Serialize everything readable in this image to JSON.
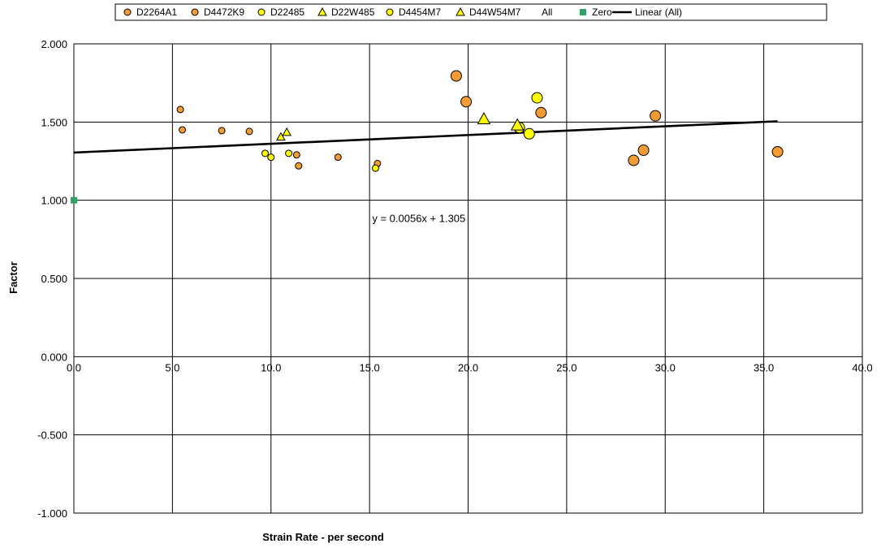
{
  "chart_data": {
    "type": "scatter",
    "title": "",
    "xlabel": "Strain Rate - per second",
    "ylabel": "Factor",
    "xlim": [
      0,
      40
    ],
    "ylim": [
      -1,
      2
    ],
    "x_ticks": [
      "0.0",
      "5.0",
      "10.0",
      "15.0",
      "20.0",
      "25.0",
      "30.0",
      "35.0",
      "40.0"
    ],
    "y_ticks": [
      "2.000",
      "1.500",
      "1.000",
      "0.500",
      "0.000",
      "-0.500",
      "-1.000"
    ],
    "grid": true,
    "legend_position": "top",
    "colors": {
      "orange": "#f39c33",
      "yellow": "#ffff00",
      "green": "#33a06a",
      "line": "#000000"
    },
    "legend": [
      {
        "label": "D2264A1",
        "marker": "circle-small",
        "color": "#f39c33"
      },
      {
        "label": "D4472K9",
        "marker": "circle-large",
        "color": "#f39c33"
      },
      {
        "label": "D22485",
        "marker": "circle-small",
        "color": "#ffff00"
      },
      {
        "label": "D22W485",
        "marker": "triangle-small",
        "color": "#ffff00"
      },
      {
        "label": "D4454M7",
        "marker": "circle-large",
        "color": "#ffff00"
      },
      {
        "label": "D44W54M7",
        "marker": "triangle-large",
        "color": "#ffff00"
      },
      {
        "label": "All",
        "marker": "none",
        "color": ""
      },
      {
        "label": "Zero",
        "marker": "square",
        "color": "#33a06a"
      },
      {
        "label": "Linear (All)",
        "marker": "line",
        "color": "#000000"
      }
    ],
    "series": [
      {
        "name": "D2264A1",
        "marker": "circle-small",
        "color": "#f39c33",
        "points": [
          [
            5.4,
            1.58
          ],
          [
            5.5,
            1.45
          ],
          [
            7.5,
            1.445
          ],
          [
            8.9,
            1.44
          ],
          [
            11.3,
            1.29
          ],
          [
            11.4,
            1.22
          ],
          [
            13.4,
            1.275
          ],
          [
            15.4,
            1.235
          ]
        ]
      },
      {
        "name": "D4472K9",
        "marker": "circle-large",
        "color": "#f39c33",
        "points": [
          [
            19.4,
            1.795
          ],
          [
            19.9,
            1.63
          ],
          [
            23.7,
            1.56
          ],
          [
            28.4,
            1.255
          ],
          [
            28.9,
            1.32
          ],
          [
            29.5,
            1.54
          ],
          [
            35.7,
            1.31
          ]
        ]
      },
      {
        "name": "D22485",
        "marker": "circle-small",
        "color": "#ffff00",
        "points": [
          [
            9.7,
            1.3
          ],
          [
            10.0,
            1.275
          ],
          [
            10.9,
            1.3
          ],
          [
            15.3,
            1.205
          ]
        ]
      },
      {
        "name": "D22W485",
        "marker": "triangle-small",
        "color": "#ffff00",
        "points": [
          [
            10.5,
            1.405
          ],
          [
            10.8,
            1.435
          ]
        ]
      },
      {
        "name": "D4454M7",
        "marker": "circle-large",
        "color": "#ffff00",
        "points": [
          [
            22.6,
            1.465
          ],
          [
            23.1,
            1.425
          ],
          [
            23.5,
            1.655
          ]
        ]
      },
      {
        "name": "D44W54M7",
        "marker": "triangle-large",
        "color": "#ffff00",
        "points": [
          [
            20.8,
            1.52
          ],
          [
            22.5,
            1.48
          ]
        ]
      },
      {
        "name": "Zero",
        "marker": "square",
        "color": "#33a06a",
        "points": [
          [
            0.0,
            1.0
          ]
        ]
      }
    ],
    "trendline": {
      "name": "Linear (All)",
      "slope": 0.0056,
      "intercept": 1.305,
      "x_range": [
        0,
        35.7
      ]
    },
    "annotations": [
      {
        "text": "y = 0.0056x + 1.305",
        "x": 17.5,
        "y": 0.86
      }
    ]
  }
}
